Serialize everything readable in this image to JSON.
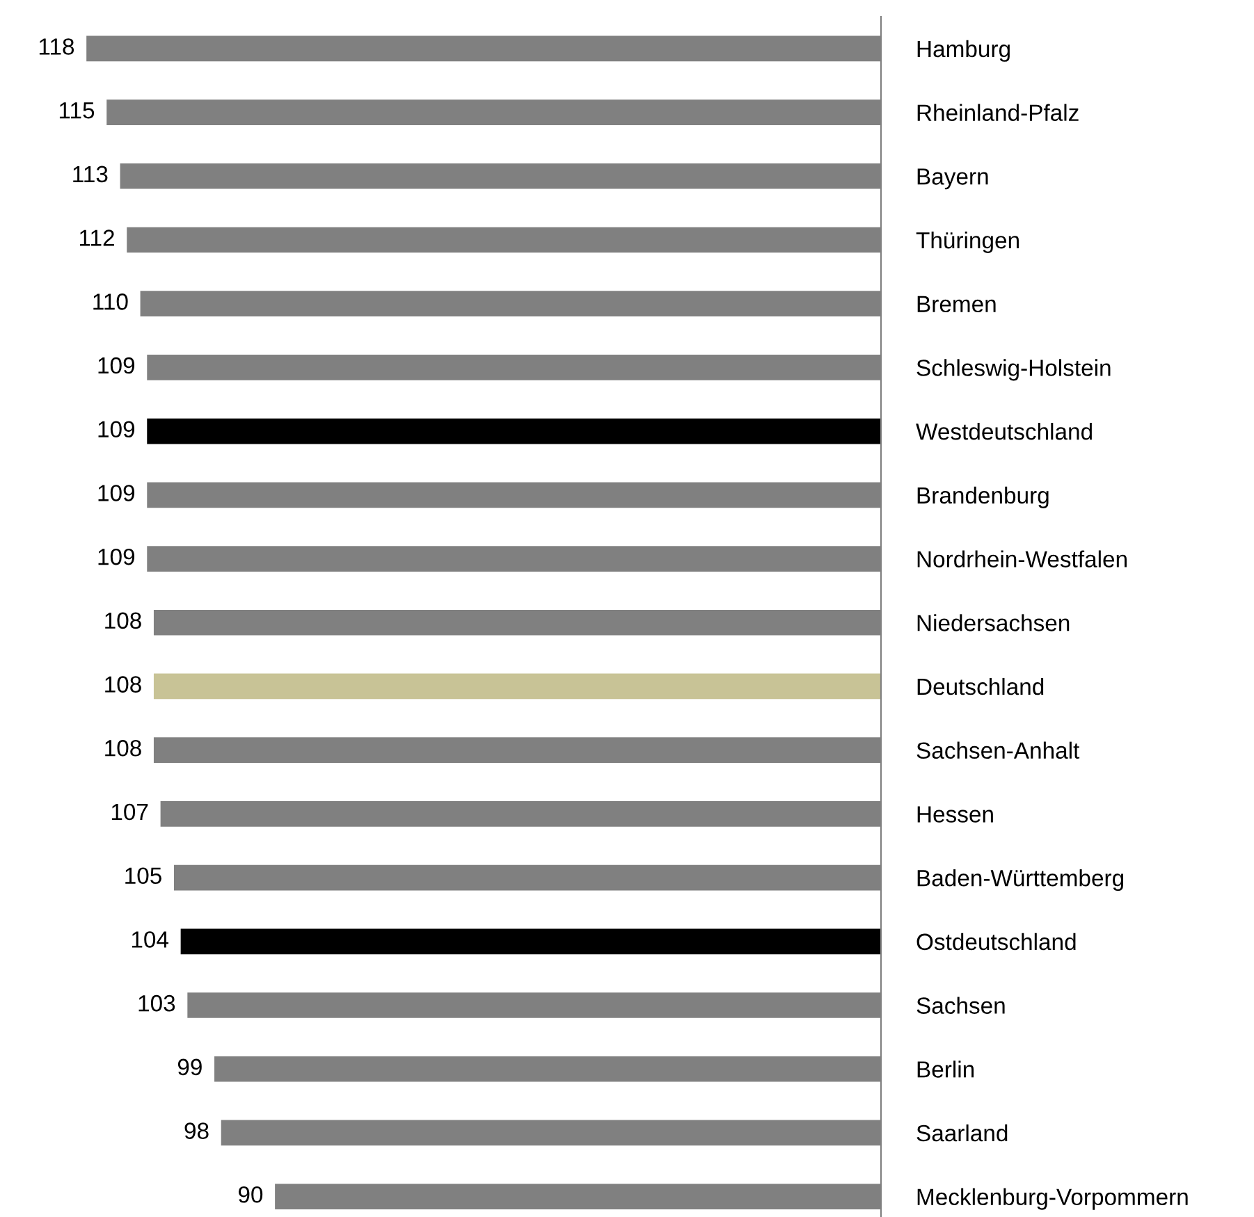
{
  "chart_data": {
    "type": "bar",
    "orientation": "horizontal",
    "categories": [
      "Hamburg",
      "Rheinland-Pfalz",
      "Bayern",
      "Thüringen",
      "Bremen",
      "Schleswig-Holstein",
      "Westdeutschland",
      "Brandenburg",
      "Nordrhein-Westfalen",
      "Niedersachsen",
      "Deutschland",
      "Sachsen-Anhalt",
      "Hessen",
      "Baden-Württemberg",
      "Ostdeutschland",
      "Sachsen",
      "Berlin",
      "Saarland",
      "Mecklenburg-Vorpommern"
    ],
    "values": [
      118,
      115,
      113,
      112,
      110,
      109,
      109,
      109,
      109,
      108,
      108,
      108,
      107,
      105,
      104,
      103,
      99,
      98,
      90
    ],
    "colors": [
      "#808080",
      "#808080",
      "#808080",
      "#808080",
      "#808080",
      "#808080",
      "#000000",
      "#808080",
      "#808080",
      "#808080",
      "#c8c396",
      "#808080",
      "#808080",
      "#808080",
      "#000000",
      "#808080",
      "#808080",
      "#808080",
      "#808080"
    ],
    "data_labels": true,
    "tick_labels": "y",
    "grid": false,
    "legend": false
  }
}
